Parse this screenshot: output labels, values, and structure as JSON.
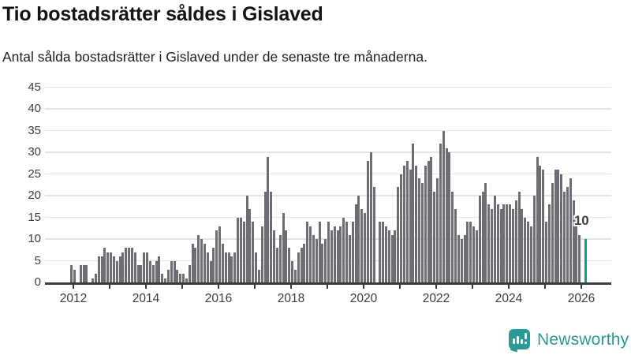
{
  "header": {
    "title": "Tio bostadsrätter såldes i Gislaved",
    "subtitle": "Antal sålda bostadsrätter i Gislaved under de senaste tre månaderna."
  },
  "chart_data": {
    "type": "bar",
    "title": "Tio bostadsrätter såldes i Gislaved",
    "subtitle": "Antal sålda bostadsrätter i Gislaved under de senaste tre månaderna.",
    "start_year": 2011,
    "start_month": 12,
    "frequency": "monthly",
    "values": [
      4,
      3,
      0,
      4,
      4,
      4,
      0,
      1,
      2,
      6,
      6,
      8,
      7,
      7,
      6,
      5,
      6,
      7,
      8,
      8,
      8,
      7,
      4,
      4,
      7,
      7,
      5,
      4,
      5,
      6,
      2,
      1,
      3,
      5,
      5,
      3,
      2,
      2,
      1,
      4,
      9,
      8,
      11,
      10,
      9,
      7,
      5,
      8,
      12,
      13,
      9,
      7,
      7,
      6,
      7,
      15,
      15,
      14,
      20,
      17,
      14,
      7,
      3,
      13,
      21,
      29,
      21,
      12,
      8,
      11,
      16,
      12,
      8,
      5,
      3,
      7,
      8,
      9,
      14,
      13,
      11,
      10,
      14,
      9,
      10,
      14,
      12,
      13,
      12,
      13,
      15,
      14,
      11,
      14,
      18,
      20,
      17,
      16,
      28,
      30,
      22,
      0,
      14,
      14,
      13,
      12,
      11,
      12,
      22,
      25,
      27,
      28,
      26,
      32,
      27,
      24,
      23,
      27,
      28,
      29,
      21,
      24,
      32,
      35,
      31,
      30,
      21,
      17,
      11,
      10,
      11,
      14,
      14,
      13,
      12,
      20,
      21,
      23,
      18,
      17,
      20,
      18,
      17,
      18,
      18,
      18,
      17,
      19,
      21,
      17,
      15,
      14,
      13,
      20,
      29,
      27,
      26,
      14,
      18,
      23,
      26,
      26,
      25,
      21,
      22,
      24,
      19,
      15,
      11,
      0,
      10
    ],
    "highlight_last": true,
    "annotation": {
      "text": "10"
    },
    "y_ticks": [
      0,
      5,
      10,
      15,
      20,
      25,
      30,
      35,
      40,
      45
    ],
    "ylim": [
      0,
      45
    ],
    "x_tick_years": [
      2012,
      2013,
      2014,
      2015,
      2016,
      2017,
      2018,
      2019,
      2020,
      2021,
      2022,
      2023,
      2024,
      2025,
      2026
    ],
    "x_labeled_years": [
      2012,
      2014,
      2016,
      2018,
      2020,
      2022,
      2024,
      2026
    ],
    "legend": "none",
    "grid": "horizontal",
    "colors": {
      "bar": "#6d6d73",
      "highlight": "#00a09b",
      "gridline": "#e4e4e4",
      "axis": "#3b3b3b"
    }
  },
  "footer": {
    "brand": "Newsworthy",
    "brand_color": "#2c9a94",
    "icon": "newsworthy-bar-chart-speech-bubble"
  }
}
